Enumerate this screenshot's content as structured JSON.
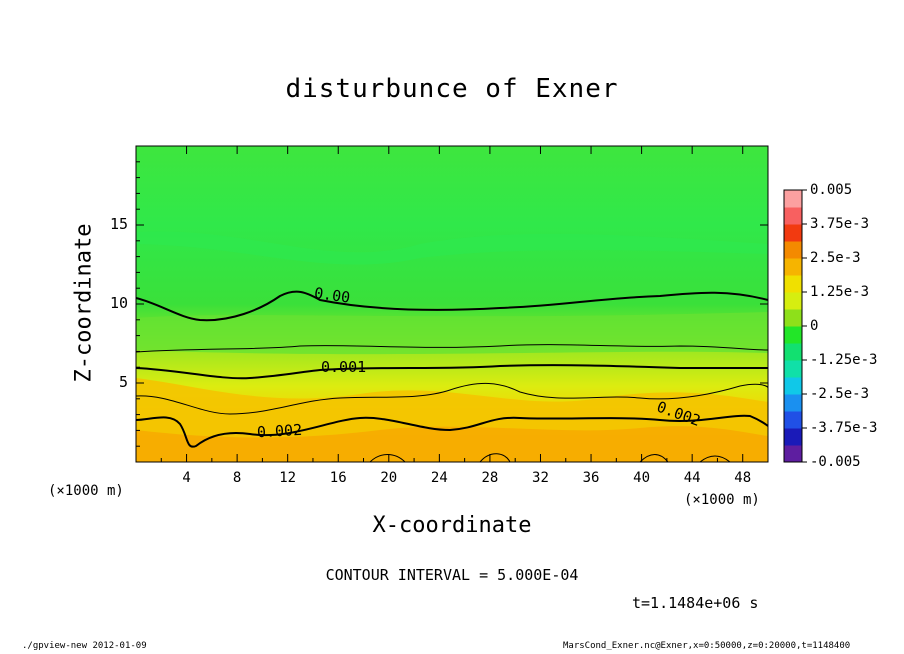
{
  "chart_data": {
    "type": "heatmap",
    "title": "disturbunce of Exner",
    "xlabel": "X-coordinate",
    "ylabel": "Z-coordinate",
    "x_unit": "(×1000 m)",
    "x_ticks": [
      4,
      8,
      12,
      16,
      20,
      24,
      28,
      32,
      36,
      40,
      44,
      48
    ],
    "y_ticks": [
      5,
      10,
      15
    ],
    "xlim": [
      0,
      50
    ],
    "ylim": [
      0,
      20
    ],
    "colorbar": {
      "ticks": [
        "0.005",
        "3.75e-3",
        "2.5e-3",
        "1.25e-3",
        "0",
        "-1.25e-3",
        "-2.5e-3",
        "-3.75e-3",
        "-0.005"
      ],
      "min": -0.005,
      "max": 0.005
    },
    "contour_labels": [
      "0.00",
      "0.001",
      "0.002",
      "0.002"
    ],
    "contour_interval_text": "CONTOUR INTERVAL = 5.000E-04",
    "time_text": "t=1.1484e+06 s",
    "footer_left": "./gpview-new  2012-01-09",
    "footer_right": "MarsCond_Exner.nc@Exner,x=0:50000,z=0:20000,t=1148400"
  }
}
